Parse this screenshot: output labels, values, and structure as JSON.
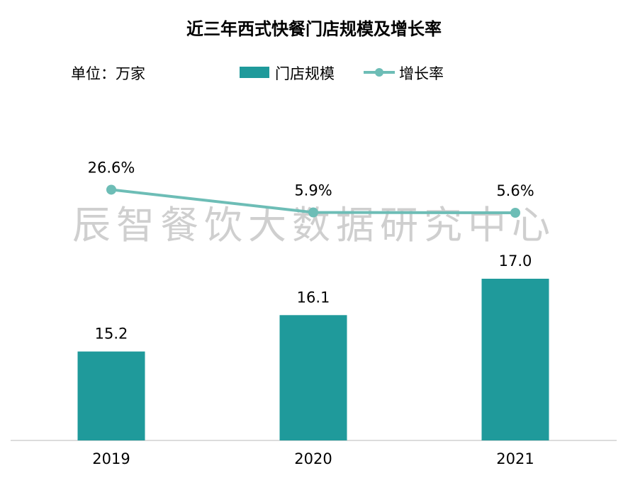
{
  "chart_data": {
    "type": "bar+line",
    "title": "近三年西式快餐门店规模及增长率",
    "unit_label": "单位：万家",
    "categories": [
      "2019",
      "2020",
      "2021"
    ],
    "series": [
      {
        "name": "门店规模",
        "type": "bar",
        "values": [
          15.2,
          16.1,
          17.0
        ],
        "labels": [
          "15.2",
          "16.1",
          "17.0"
        ],
        "color": "#1f9a9b"
      },
      {
        "name": "增长率",
        "type": "line",
        "values": [
          26.6,
          5.9,
          5.6
        ],
        "labels": [
          "26.6%",
          "5.9%",
          "5.6%"
        ],
        "color": "#6dbdb6"
      }
    ],
    "bar_axis_min": 13,
    "grid": false,
    "legend_position": "top",
    "watermark": "辰智餐饮大数据研究中心"
  }
}
